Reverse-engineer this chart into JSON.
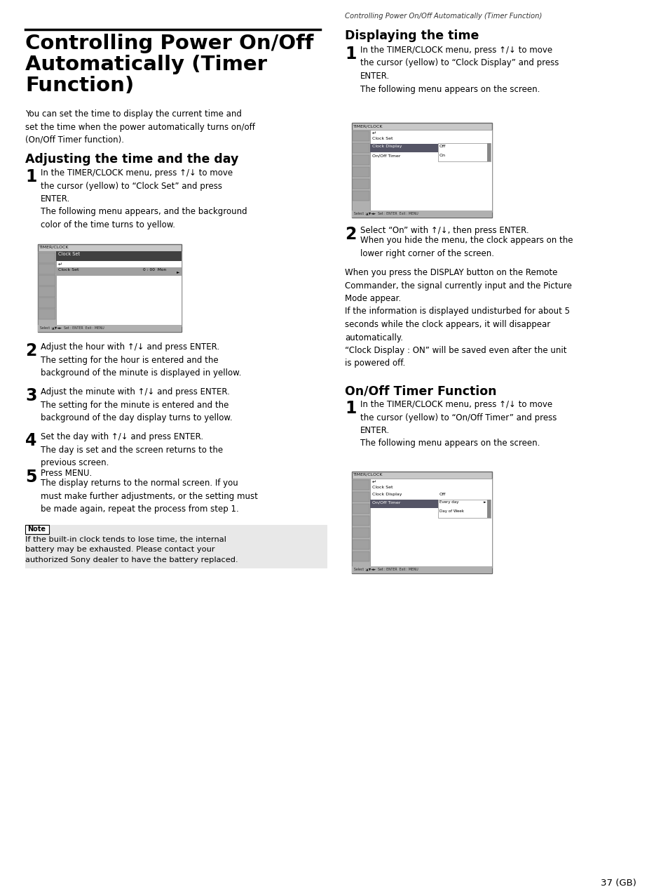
{
  "page_bg": "#ffffff",
  "main_title_line1": "Controlling Power On/Off",
  "main_title_line2": "Automatically (Timer",
  "main_title_line3": "Function)",
  "header_text": "Controlling Power On/Off Automatically (Timer Function)",
  "intro_text": "You can set the time to display the current time and\nset the time when the power automatically turns on/off\n(On/Off Timer function).",
  "section1_title": "Adjusting the time and the day",
  "section2_title": "Displaying the time",
  "section3_title": "On/Off Timer Function",
  "s1_step1": "In the TIMER/CLOCK menu, press ↑/↓ to move\nthe cursor (yellow) to “Clock Set” and press\nENTER.\nThe following menu appears, and the background\ncolor of the time turns to yellow.",
  "s1_step2": "Adjust the hour with ↑/↓ and press ENTER.\nThe setting for the hour is entered and the\nbackground of the minute is displayed in yellow.",
  "s1_step3": "Adjust the minute with ↑/↓ and press ENTER.\nThe setting for the minute is entered and the\nbackground of the day display turns to yellow.",
  "s1_step4": "Set the day with ↑/↓ and press ENTER.\nThe day is set and the screen returns to the\nprevious screen.",
  "s1_step5_line1": "Press MENU.",
  "s1_step5_rest": "The display returns to the normal screen. If you\nmust make further adjustments, or the setting must\nbe made again, repeat the process from step 1.",
  "note_title": "Note",
  "note_text": "If the built-in clock tends to lose time, the internal\nbattery may be exhausted. Please contact your\nauthorized Sony dealer to have the battery replaced.",
  "s2_step1": "In the TIMER/CLOCK menu, press ↑/↓ to move\nthe cursor (yellow) to “Clock Display” and press\nENTER.\nThe following menu appears on the screen.",
  "s2_step2_line1": "Select “On” with ↑/↓, then press ENTER.",
  "s2_step2_rest": "When you hide the menu, the clock appears on the\nlower right corner of the screen.",
  "s2_extra": "When you press the DISPLAY button on the Remote\nCommander, the signal currently input and the Picture\nMode appear.\nIf the information is displayed undisturbed for about 5\nseconds while the clock appears, it will disappear\nautomatically.\n“Clock Display : ON” will be saved even after the unit\nis powered off.",
  "s3_step1": "In the TIMER/CLOCK menu, press ↑/↓ to move\nthe cursor (yellow) to “On/Off Timer” and press\nENTER.\nThe following menu appears on the screen.",
  "page_number": "37 (GB)"
}
